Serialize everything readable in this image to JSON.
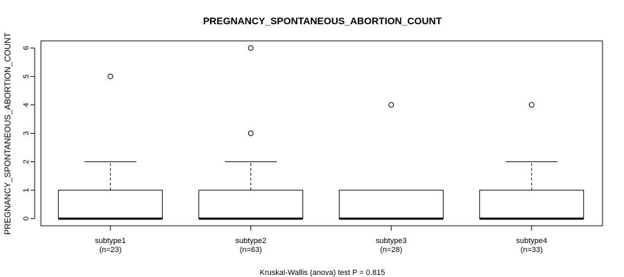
{
  "chart_data": {
    "type": "boxplot",
    "title": "PREGNANCY_SPONTANEOUS_ABORTION_COUNT",
    "xlabel": "",
    "ylabel": "PREGNANCY_SPONTANEOUS_ABORTION_COUNT",
    "ylim": [
      -0.25,
      6.25
    ],
    "yticks": [
      0,
      1,
      2,
      3,
      4,
      5,
      6
    ],
    "categories": [
      {
        "name": "subtype1",
        "n_label": "(n=23)",
        "min": 0,
        "q1": 0,
        "median": 0,
        "q3": 1,
        "max": 2,
        "outliers": [
          5
        ]
      },
      {
        "name": "subtype2",
        "n_label": "(n=63)",
        "min": 0,
        "q1": 0,
        "median": 0,
        "q3": 1,
        "max": 2,
        "outliers": [
          3,
          6
        ]
      },
      {
        "name": "subtype3",
        "n_label": "(n=28)",
        "min": 0,
        "q1": 0,
        "median": 0,
        "q3": 1,
        "max": 1,
        "outliers": [
          4
        ]
      },
      {
        "name": "subtype4",
        "n_label": "(n=33)",
        "min": 0,
        "q1": 0,
        "median": 0,
        "q3": 1,
        "max": 2,
        "outliers": [
          4
        ]
      }
    ],
    "footer": "Kruskal-Wallis (anova) test P = 0.815"
  }
}
